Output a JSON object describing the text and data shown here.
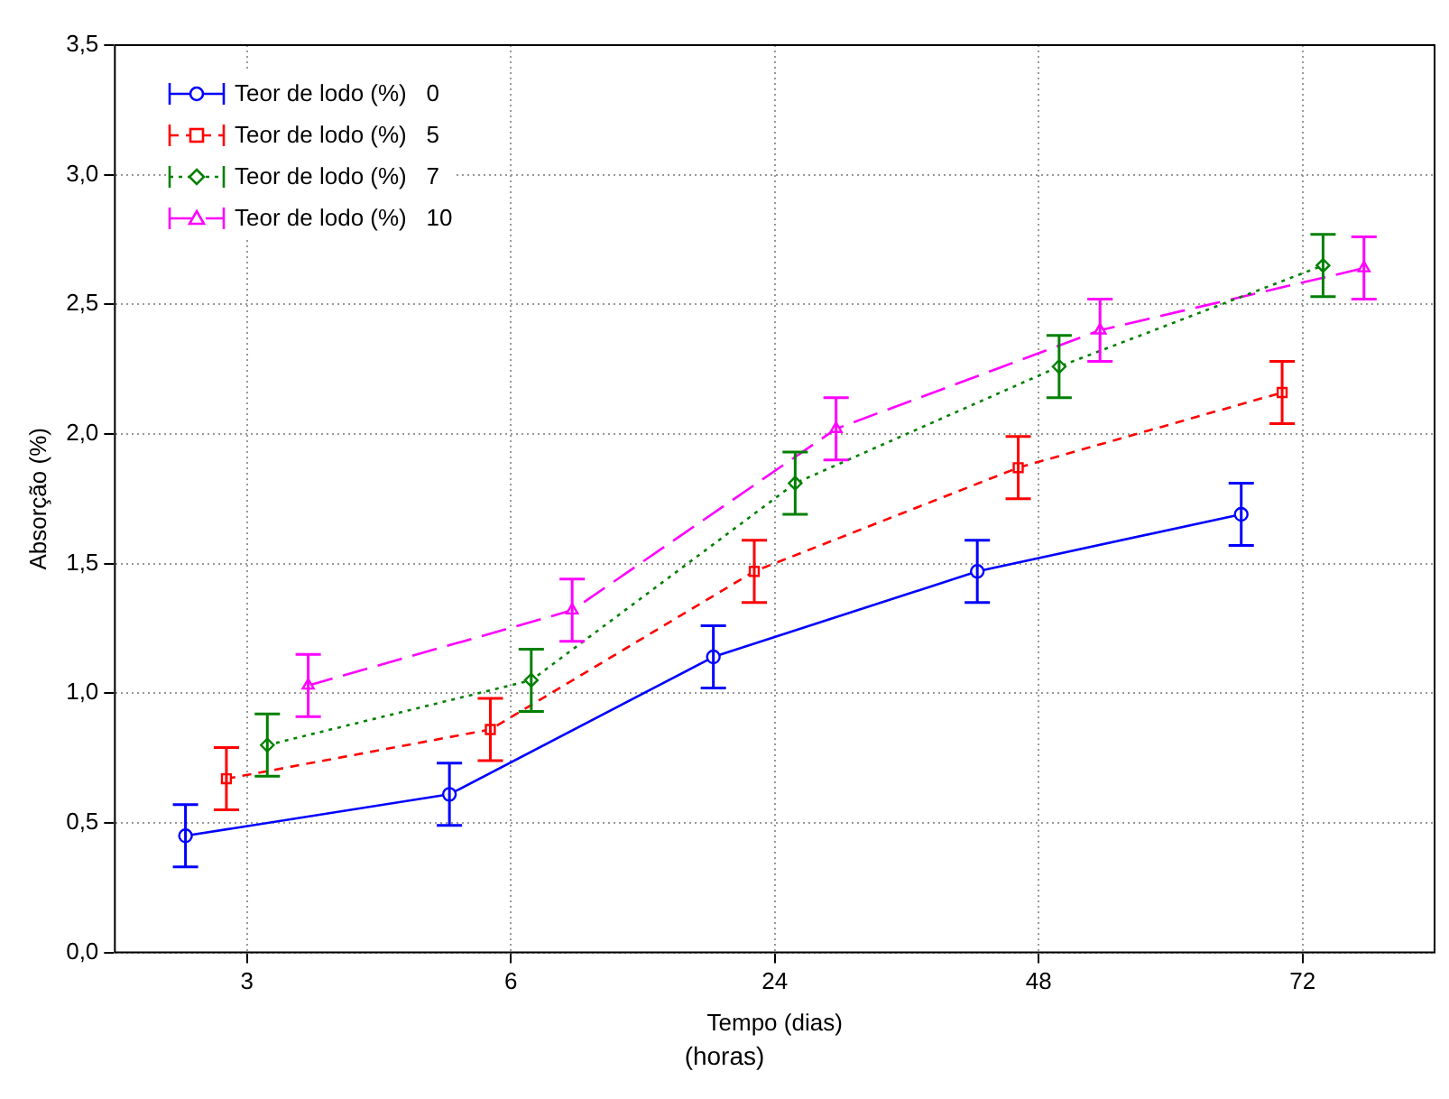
{
  "chart_data": {
    "type": "line",
    "xlabel": "Tempo (dias)",
    "ylabel": "Absorção (%)",
    "annotations": [
      "(horas)"
    ],
    "categories": [
      "3",
      "6",
      "24",
      "48",
      "72"
    ],
    "ylim": [
      0,
      3.5
    ],
    "yticks": [
      {
        "value": 0,
        "label": "0,0"
      },
      {
        "value": 0.5,
        "label": "0,5"
      },
      {
        "value": 1,
        "label": "1,0"
      },
      {
        "value": 1.5,
        "label": "1,5"
      },
      {
        "value": 2,
        "label": "2,0"
      },
      {
        "value": 2.5,
        "label": "2,5"
      },
      {
        "value": 3,
        "label": "3,0"
      },
      {
        "value": 3.5,
        "label": "3,5"
      }
    ],
    "grid": true,
    "legend": "top left",
    "series": [
      {
        "name": "Teor de lodo (%)   0",
        "color": "#0000ff",
        "line_style": "solid",
        "marker": "circle",
        "values": [
          0.45,
          0.61,
          1.14,
          1.47,
          1.69
        ],
        "errors": [
          0.12,
          0.12,
          0.12,
          0.12,
          0.12
        ]
      },
      {
        "name": "Teor de lodo (%)   5",
        "color": "#ff0000",
        "line_style": "dashed",
        "marker": "square",
        "values": [
          0.67,
          0.86,
          1.47,
          1.87,
          2.16
        ],
        "errors": [
          0.12,
          0.12,
          0.12,
          0.12,
          0.12
        ]
      },
      {
        "name": "Teor de lodo (%)   7",
        "color": "#008000",
        "line_style": "dotted",
        "marker": "diamond",
        "values": [
          0.8,
          1.05,
          1.81,
          2.26,
          2.65
        ],
        "errors": [
          0.12,
          0.12,
          0.12,
          0.12,
          0.12
        ]
      },
      {
        "name": "Teor de lodo (%)   10",
        "color": "#ff00ff",
        "line_style": "dashed",
        "marker": "triangle",
        "values": [
          1.03,
          1.32,
          2.02,
          2.4,
          2.64
        ],
        "errors": [
          0.12,
          0.12,
          0.12,
          0.12,
          0.12
        ]
      }
    ]
  }
}
